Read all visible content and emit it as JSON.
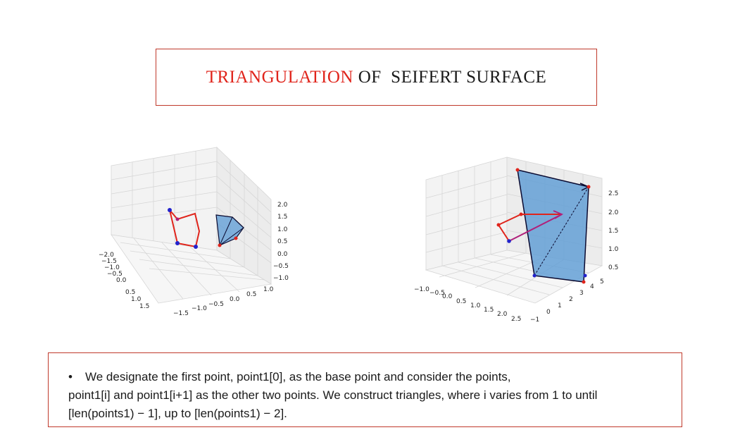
{
  "title": {
    "part1": "TRIANGULATION",
    "part2": " OF  SEIFERT SURFACE"
  },
  "left_plot": {
    "x_ticks": [
      "−2.0",
      "−1.5",
      "−1.0",
      "−0.5",
      "0.0",
      "0.5",
      "1.0",
      "1.5"
    ],
    "y_ticks": [
      "−1.5",
      "−1.0",
      "−0.5",
      "0.0",
      "0.5",
      "1.0"
    ],
    "z_ticks": [
      "2.0",
      "1.5",
      "1.0",
      "0.5",
      "0.0",
      "−0.5",
      "−1.0"
    ]
  },
  "right_plot": {
    "x_ticks": [
      "−1.0",
      "−0.5",
      "0.0",
      "0.5",
      "1.0",
      "1.5",
      "2.0",
      "2.5"
    ],
    "y_ticks": [
      "−1",
      "0",
      "1",
      "2",
      "3",
      "4",
      "5"
    ],
    "z_ticks": [
      "2.5",
      "2.0",
      "1.5",
      "1.0",
      "0.5"
    ]
  },
  "body": {
    "bullet": "•",
    "line1": "We designate the first point, point1[0], as the base point and consider the points,",
    "line2": "point1[i] and point1[i+1] as the other two points. We construct triangles, where i varies from 1 to until",
    "line3": "[len(points1) − 1], up to [len(points1) − 2]."
  }
}
